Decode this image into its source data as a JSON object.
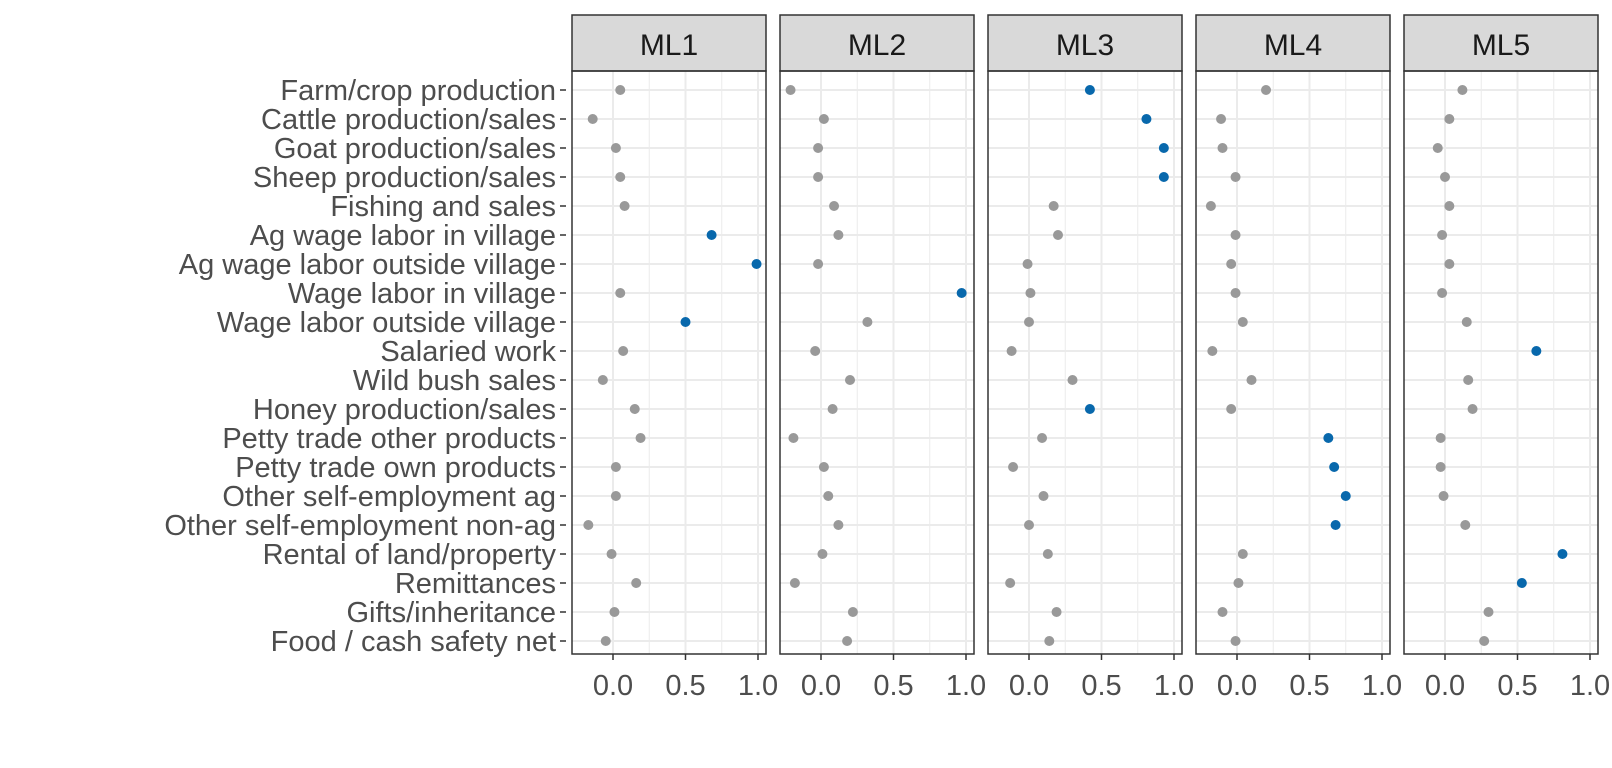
{
  "chart_data": {
    "type": "scatter",
    "facets": [
      "ML1",
      "ML2",
      "ML3",
      "ML4",
      "ML5"
    ],
    "categories": [
      "Farm/crop production",
      "Cattle production/sales",
      "Goat production/sales",
      "Sheep production/sales",
      "Fishing and sales",
      "Ag wage labor in village",
      "Ag wage labor outside village",
      "Wage labor in village",
      "Wage labor outside village",
      "Salaried work",
      "Wild bush sales",
      "Honey production/sales",
      "Petty trade other products",
      "Petty trade own products",
      "Other self-employment ag",
      "Other self-employment non-ag",
      "Rental of land/property",
      "Remittances",
      "Gifts/inheritance",
      "Food / cash safety net"
    ],
    "xlim": [
      -0.27,
      1.03
    ],
    "xticks": [
      0.0,
      0.5,
      1.0
    ],
    "xtick_labels": [
      "0.0",
      "0.5",
      "1.0"
    ],
    "colors": {
      "highlight": "#0868ac",
      "normal": "#999999",
      "strip": "#d9d9d9",
      "grid": "#ebebeb"
    },
    "series": [
      {
        "values": [
          0.05,
          -0.14,
          0.02,
          0.05,
          0.08,
          0.68,
          0.99,
          0.05,
          0.5,
          0.07,
          -0.07,
          0.15,
          0.19,
          0.02,
          0.02,
          -0.17,
          -0.01,
          0.16,
          0.01,
          -0.05
        ],
        "highlight": [
          5,
          6,
          8
        ]
      },
      {
        "values": [
          -0.21,
          0.02,
          -0.02,
          -0.02,
          0.09,
          0.12,
          -0.02,
          0.97,
          0.32,
          -0.04,
          0.2,
          0.08,
          -0.19,
          0.02,
          0.05,
          0.12,
          0.01,
          -0.18,
          0.22,
          0.18
        ],
        "highlight": [
          7
        ]
      },
      {
        "values": [
          0.42,
          0.81,
          0.93,
          0.93,
          0.17,
          0.2,
          -0.01,
          0.01,
          0.0,
          -0.12,
          0.3,
          0.42,
          0.09,
          -0.11,
          0.1,
          0.0,
          0.13,
          -0.13,
          0.19,
          0.14
        ],
        "highlight": [
          0,
          1,
          2,
          3,
          11
        ]
      },
      {
        "values": [
          0.2,
          -0.11,
          -0.1,
          -0.01,
          -0.18,
          -0.01,
          -0.04,
          -0.01,
          0.04,
          -0.17,
          0.1,
          -0.04,
          0.63,
          0.67,
          0.75,
          0.68,
          0.04,
          0.01,
          -0.1,
          -0.01
        ],
        "highlight": [
          12,
          13,
          14,
          15
        ]
      },
      {
        "values": [
          0.12,
          0.03,
          -0.05,
          0.0,
          0.03,
          -0.02,
          0.03,
          -0.02,
          0.15,
          0.63,
          0.16,
          0.19,
          -0.03,
          -0.03,
          -0.01,
          0.14,
          0.81,
          0.53,
          0.3,
          0.27
        ],
        "highlight": [
          9,
          16,
          17
        ]
      }
    ]
  }
}
